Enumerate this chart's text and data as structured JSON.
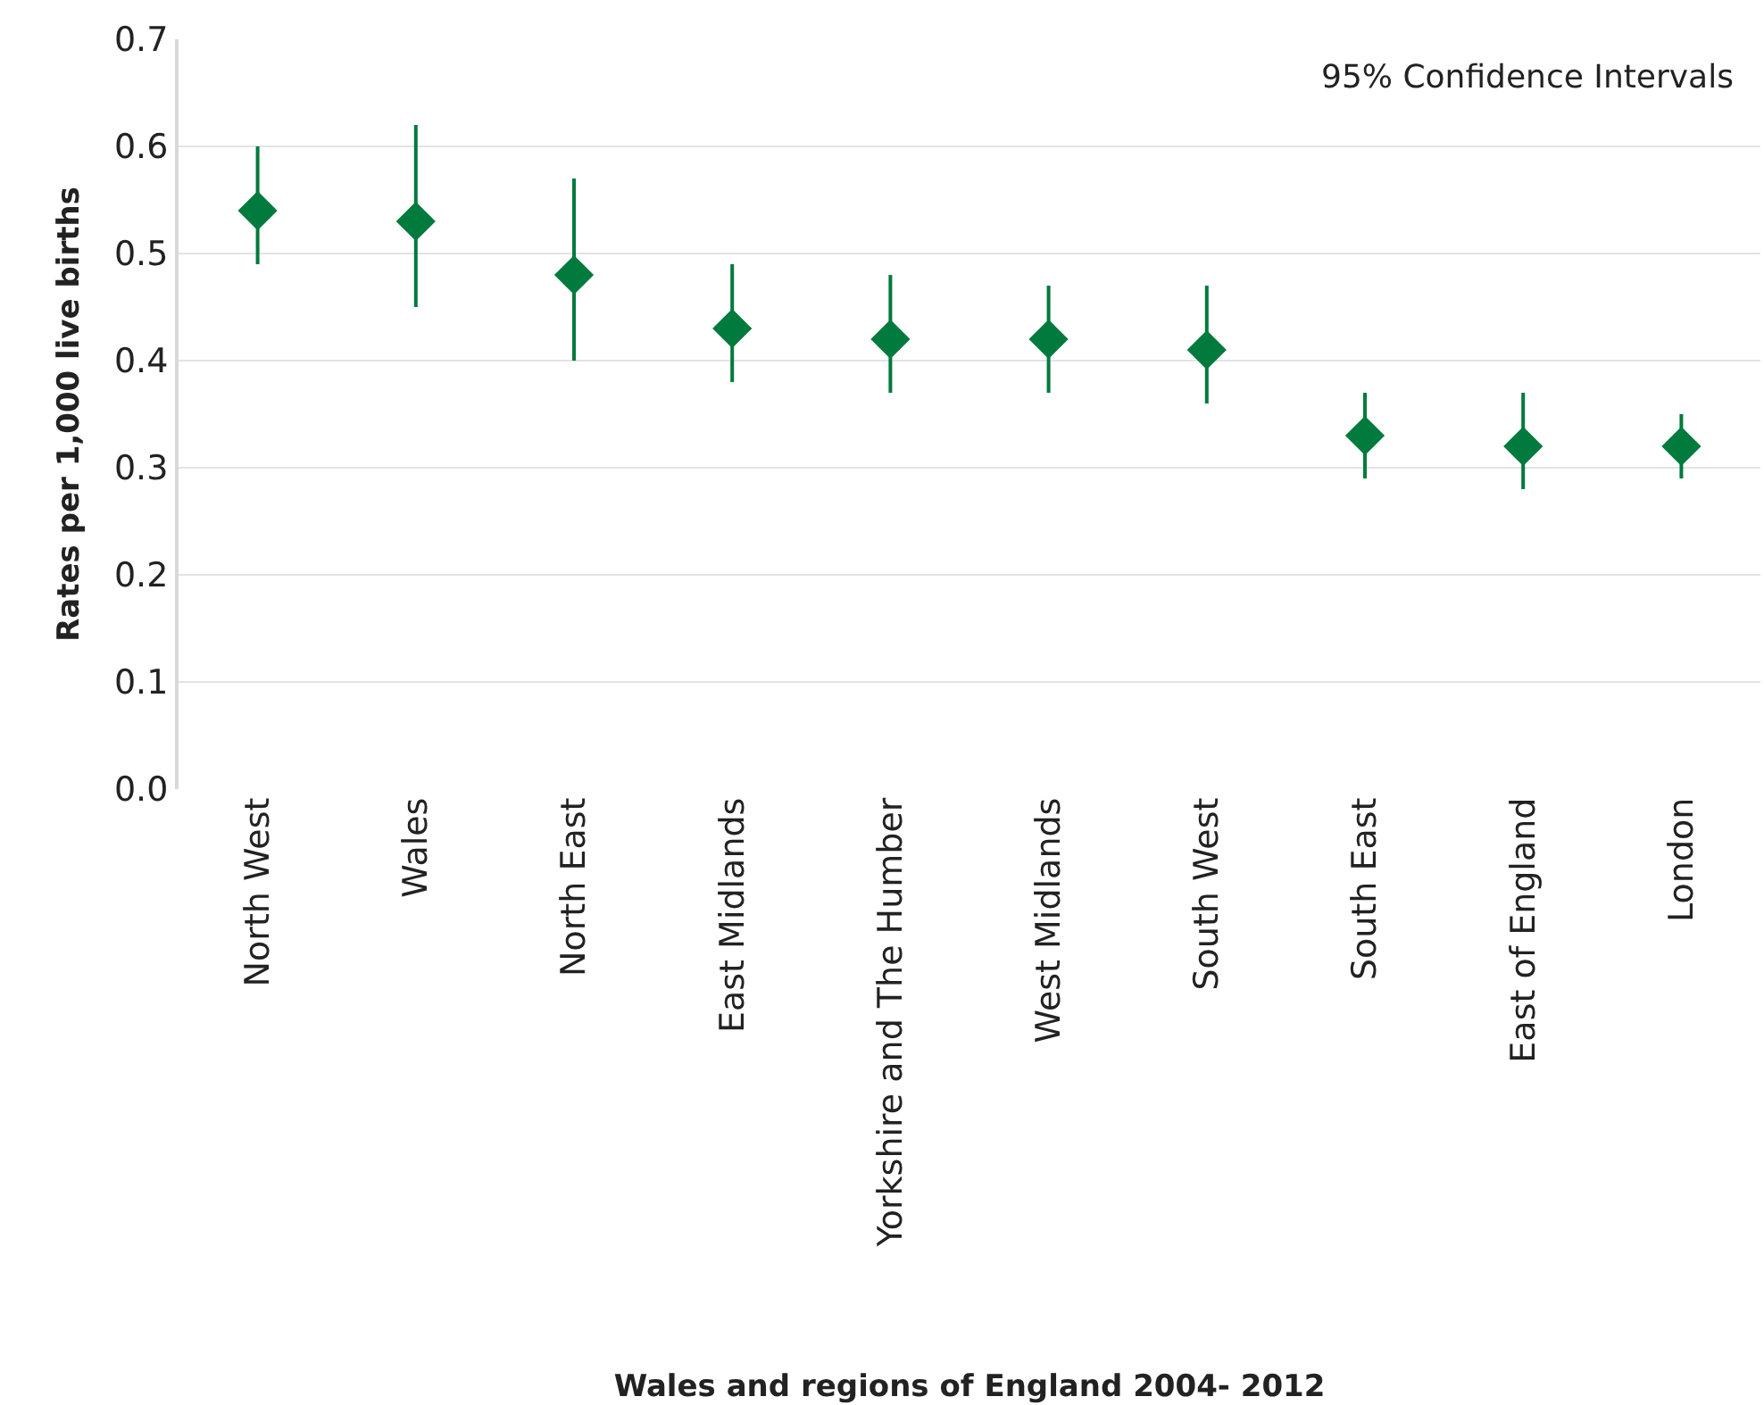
{
  "chart_data": {
    "type": "scatter",
    "xlabel": "Wales and regions of England 2004- 2012",
    "ylabel": "Rates per 1,000 live births",
    "annotations": [
      "95% Confidence Intervals"
    ],
    "categories": [
      "North West",
      "Wales",
      "North East",
      "East Midlands",
      "Yorkshire and The Humber",
      "West Midlands",
      "South West",
      "South East",
      "East of England",
      "London"
    ],
    "series": [
      {
        "color": "#007a3d",
        "values": [
          0.54,
          0.53,
          0.48,
          0.43,
          0.42,
          0.42,
          0.41,
          0.33,
          0.32,
          0.32
        ],
        "errors": [
          [
            0.49,
            0.6
          ],
          [
            0.45,
            0.62
          ],
          [
            0.4,
            0.57
          ],
          [
            0.38,
            0.49
          ],
          [
            0.37,
            0.48
          ],
          [
            0.37,
            0.47
          ],
          [
            0.36,
            0.47
          ],
          [
            0.29,
            0.37
          ],
          [
            0.28,
            0.37
          ],
          [
            0.29,
            0.35
          ]
        ]
      }
    ],
    "ylim": [
      0,
      0.7
    ],
    "yticks": [
      {
        "value": 0,
        "label": "0.0"
      },
      {
        "value": 0.1,
        "label": "0.1"
      },
      {
        "value": 0.2,
        "label": "0.2"
      },
      {
        "value": 0.3,
        "label": "0.3"
      },
      {
        "value": 0.4,
        "label": "0.4"
      },
      {
        "value": 0.5,
        "label": "0.5"
      },
      {
        "value": 0.6,
        "label": "0.6"
      },
      {
        "value": 0.7,
        "label": "0.7"
      }
    ],
    "grid": "y",
    "marker": "diamond"
  }
}
